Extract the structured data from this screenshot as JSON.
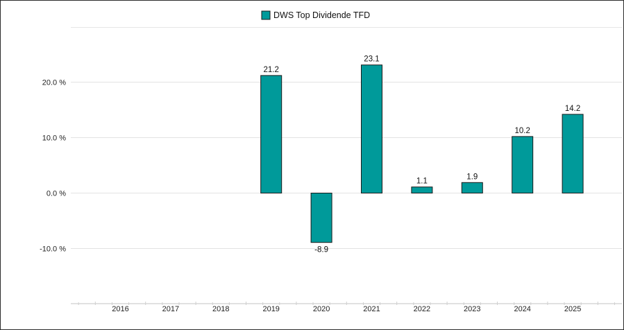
{
  "chart_data": {
    "type": "bar",
    "title": "",
    "xlabel": "",
    "ylabel": "",
    "categories": [
      "2016",
      "2017",
      "2018",
      "2019",
      "2020",
      "2021",
      "2022",
      "2023",
      "2024",
      "2025"
    ],
    "series": [
      {
        "name": "DWS Top Dividende TFD",
        "color": "#009a9a",
        "values": [
          null,
          null,
          null,
          21.2,
          -8.9,
          23.1,
          1.1,
          1.9,
          10.2,
          14.2
        ],
        "labels": [
          "",
          "",
          "",
          "21.2",
          "-8.9",
          "23.1",
          "1.1",
          "1.9",
          "10.2",
          "14.2"
        ]
      }
    ],
    "y_ticks": [
      20,
      10,
      0,
      -10
    ],
    "y_tick_labels": [
      "20.0 %",
      "10.0 %",
      "0.0 %",
      "-10.0 %"
    ],
    "ylim": [
      -20,
      30
    ],
    "grid": true,
    "legend_position": "top-center"
  }
}
